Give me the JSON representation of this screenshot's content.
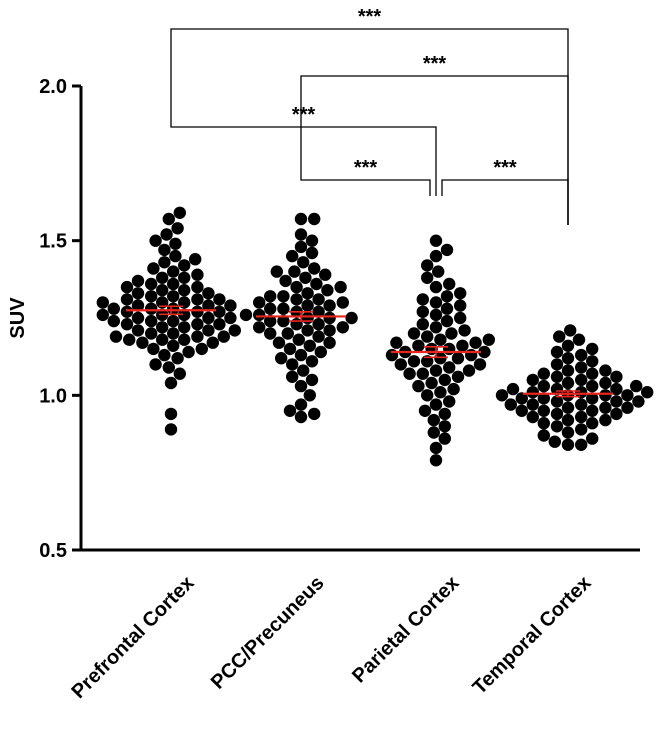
{
  "chart_data": {
    "type": "scatter",
    "subtype": "beeswarm-dot-plot-with-mean-and-sem",
    "title": "",
    "xlabel": "",
    "ylabel": "SUV",
    "ylim": [
      0.5,
      2.0
    ],
    "yticks": [
      0.5,
      1.0,
      1.5,
      2.0
    ],
    "ytick_labels": [
      "0.5",
      "1.0",
      "1.5",
      "2.0"
    ],
    "categories": [
      "Prefrontal Cortex",
      "PCC/Precuneus",
      "Parietal Cortex",
      "Temporal Cortex"
    ],
    "colors": {
      "points": "#000000",
      "summary": "#e8251f",
      "axes": "#000000"
    },
    "series": [
      {
        "name": "Prefrontal Cortex",
        "mean": 1.275,
        "sem": 0.013,
        "values": [
          0.89,
          0.94,
          1.04,
          1.07,
          1.09,
          1.1,
          1.12,
          1.13,
          1.14,
          1.15,
          1.15,
          1.16,
          1.17,
          1.17,
          1.18,
          1.18,
          1.18,
          1.19,
          1.19,
          1.19,
          1.2,
          1.2,
          1.21,
          1.21,
          1.21,
          1.22,
          1.22,
          1.23,
          1.23,
          1.23,
          1.24,
          1.24,
          1.24,
          1.25,
          1.25,
          1.25,
          1.26,
          1.26,
          1.26,
          1.27,
          1.27,
          1.27,
          1.28,
          1.28,
          1.28,
          1.29,
          1.29,
          1.29,
          1.3,
          1.3,
          1.3,
          1.31,
          1.31,
          1.31,
          1.32,
          1.32,
          1.33,
          1.33,
          1.34,
          1.34,
          1.35,
          1.35,
          1.36,
          1.36,
          1.37,
          1.38,
          1.38,
          1.39,
          1.4,
          1.41,
          1.42,
          1.43,
          1.44,
          1.45,
          1.47,
          1.49,
          1.5,
          1.52,
          1.54,
          1.57,
          1.59
        ]
      },
      {
        "name": "PCC/Precuneus",
        "mean": 1.255,
        "sem": 0.015,
        "values": [
          0.93,
          0.94,
          0.95,
          0.97,
          1.0,
          1.03,
          1.05,
          1.06,
          1.08,
          1.1,
          1.11,
          1.12,
          1.13,
          1.14,
          1.15,
          1.16,
          1.17,
          1.17,
          1.18,
          1.19,
          1.2,
          1.2,
          1.21,
          1.21,
          1.22,
          1.22,
          1.23,
          1.23,
          1.24,
          1.24,
          1.25,
          1.25,
          1.25,
          1.26,
          1.26,
          1.27,
          1.27,
          1.28,
          1.28,
          1.29,
          1.29,
          1.3,
          1.3,
          1.31,
          1.31,
          1.32,
          1.32,
          1.33,
          1.34,
          1.35,
          1.35,
          1.36,
          1.37,
          1.38,
          1.39,
          1.4,
          1.4,
          1.41,
          1.43,
          1.45,
          1.46,
          1.48,
          1.5,
          1.52,
          1.57,
          1.57
        ]
      },
      {
        "name": "Parietal Cortex",
        "mean": 1.14,
        "sem": 0.017,
        "values": [
          0.79,
          0.83,
          0.86,
          0.88,
          0.9,
          0.92,
          0.94,
          0.95,
          0.97,
          0.98,
          1.0,
          1.01,
          1.02,
          1.03,
          1.04,
          1.05,
          1.06,
          1.07,
          1.07,
          1.08,
          1.08,
          1.09,
          1.1,
          1.1,
          1.11,
          1.11,
          1.12,
          1.12,
          1.13,
          1.13,
          1.14,
          1.14,
          1.15,
          1.15,
          1.16,
          1.16,
          1.17,
          1.17,
          1.18,
          1.18,
          1.19,
          1.2,
          1.2,
          1.21,
          1.22,
          1.23,
          1.24,
          1.25,
          1.26,
          1.27,
          1.28,
          1.29,
          1.3,
          1.31,
          1.32,
          1.33,
          1.35,
          1.36,
          1.38,
          1.4,
          1.42,
          1.45,
          1.47,
          1.5
        ]
      },
      {
        "name": "Temporal Cortex",
        "mean": 1.005,
        "sem": 0.009,
        "values": [
          0.84,
          0.84,
          0.85,
          0.86,
          0.87,
          0.88,
          0.89,
          0.9,
          0.91,
          0.91,
          0.92,
          0.92,
          0.93,
          0.93,
          0.94,
          0.94,
          0.95,
          0.95,
          0.95,
          0.96,
          0.96,
          0.96,
          0.97,
          0.97,
          0.97,
          0.98,
          0.98,
          0.98,
          0.99,
          0.99,
          0.99,
          1.0,
          1.0,
          1.0,
          1.0,
          1.01,
          1.01,
          1.01,
          1.02,
          1.02,
          1.02,
          1.03,
          1.03,
          1.03,
          1.04,
          1.04,
          1.05,
          1.05,
          1.06,
          1.06,
          1.07,
          1.07,
          1.08,
          1.08,
          1.09,
          1.1,
          1.11,
          1.12,
          1.13,
          1.14,
          1.15,
          1.16,
          1.18,
          1.19,
          1.21
        ]
      }
    ],
    "comparisons": [
      {
        "from": "Prefrontal Cortex",
        "to": "Temporal Cortex",
        "label": "***"
      },
      {
        "from": "PCC/Precuneus",
        "to": "Temporal Cortex",
        "label": "***"
      },
      {
        "from": "Prefrontal Cortex",
        "to": "Parietal Cortex",
        "label": "***"
      },
      {
        "from": "PCC/Precuneus",
        "to": "Parietal Cortex",
        "label": "***"
      },
      {
        "from": "Parietal Cortex",
        "to": "Temporal Cortex",
        "label": "***"
      }
    ]
  }
}
